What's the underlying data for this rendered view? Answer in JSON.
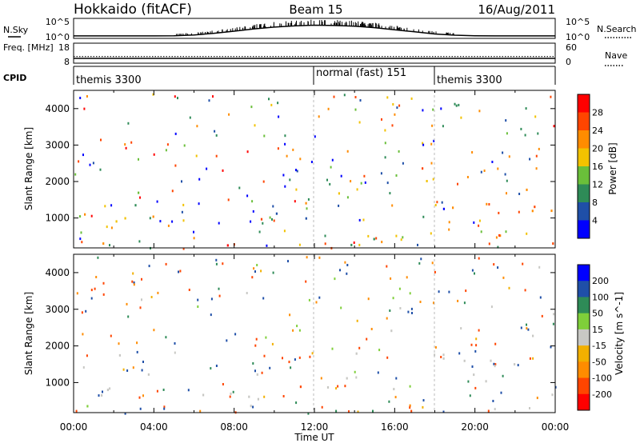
{
  "header": {
    "station": "Hokkaido (fitACF)",
    "beam": "Beam 15",
    "date": "16/Aug/2011"
  },
  "chart_data": [
    {
      "type": "line",
      "name": "noise-strip",
      "left_label": "N.Sky",
      "right_label": "N.Search",
      "left_ticks": [
        "10^5",
        "10^0"
      ],
      "right_ticks": [
        "10^5",
        "10^0"
      ],
      "x": [
        0,
        1,
        2,
        3,
        4,
        5,
        6,
        7,
        8,
        9,
        10,
        11,
        12,
        13,
        14,
        15,
        16,
        17,
        18,
        19,
        20,
        21,
        22,
        23,
        24
      ],
      "values": [
        0.05,
        0.05,
        0.05,
        0.05,
        0.05,
        0.06,
        0.1,
        0.2,
        0.32,
        0.45,
        0.55,
        0.62,
        0.66,
        0.64,
        0.6,
        0.52,
        0.4,
        0.28,
        0.16,
        0.09,
        0.06,
        0.05,
        0.05,
        0.05,
        0.05
      ]
    },
    {
      "type": "line",
      "name": "frequency-strip",
      "left_label": "Freq. [MHz]",
      "right_label": "Nave",
      "left_ticks": [
        "18",
        "8"
      ],
      "right_ticks": [
        "60",
        "0"
      ],
      "frequency_MHz": 10.4,
      "nave": 20
    },
    {
      "type": "table",
      "name": "cpid-strip",
      "label": "CPID",
      "segments": [
        {
          "start": 0,
          "end": 12,
          "text": "themis 3300"
        },
        {
          "start": 12,
          "end": 18,
          "text": "normal (fast) 151"
        },
        {
          "start": 18,
          "end": 24,
          "text": "themis 3300"
        }
      ]
    },
    {
      "type": "heatmap",
      "name": "power",
      "ylabel": "Slant Range [km]",
      "yticks": [
        1000,
        2000,
        3000,
        4000
      ],
      "ylim": [
        180,
        4500
      ],
      "colorbar_label": "Power [dB]",
      "colorbar_ticks": [
        4,
        8,
        12,
        16,
        20,
        24,
        28
      ],
      "colors": [
        "#0000ff",
        "#1f4fa8",
        "#2e8b57",
        "#6abf3a",
        "#f2c200",
        "#ff8c00",
        "#ff4500",
        "#ff0000"
      ],
      "features": [
        {
          "t0": 0.0,
          "t1": 9.5,
          "r0": 250,
          "r1": 1200,
          "level": 22
        },
        {
          "t0": 5.0,
          "t1": 9.0,
          "r0": 250,
          "r1": 650,
          "level": 30
        },
        {
          "t0": 0.0,
          "t1": 3.0,
          "r0": 950,
          "r1": 1650,
          "level": 17
        },
        {
          "t0": 3.0,
          "t1": 6.5,
          "r0": 1300,
          "r1": 1900,
          "level": 13
        },
        {
          "t0": 9.5,
          "t1": 12.0,
          "r0": 300,
          "r1": 1400,
          "level": 10
        },
        {
          "t0": 11.0,
          "t1": 18.0,
          "r0": 1400,
          "r1": 2200,
          "level": 20
        },
        {
          "t0": 12.5,
          "t1": 15.0,
          "r0": 1500,
          "r1": 2000,
          "level": 27
        },
        {
          "t0": 15.5,
          "t1": 17.5,
          "r0": 2000,
          "r1": 2500,
          "level": 26
        },
        {
          "t0": 12.0,
          "t1": 18.0,
          "r0": 250,
          "r1": 700,
          "level": 10
        },
        {
          "t0": 18.0,
          "t1": 24.0,
          "r0": 500,
          "r1": 2000,
          "level": 22
        },
        {
          "t0": 20.0,
          "t1": 24.0,
          "r0": 250,
          "r1": 900,
          "level": 27
        },
        {
          "t0": 18.0,
          "t1": 19.5,
          "r0": 1200,
          "r1": 2400,
          "level": 5
        },
        {
          "t0": 9.5,
          "t1": 11.0,
          "r0": 3000,
          "r1": 3300,
          "level": 8
        },
        {
          "t0": 19.0,
          "t1": 20.5,
          "r0": 3500,
          "r1": 3900,
          "level": 8
        }
      ]
    },
    {
      "type": "heatmap",
      "name": "velocity",
      "xlabel": "Time UT",
      "xticks": [
        "00:00",
        "04:00",
        "08:00",
        "12:00",
        "16:00",
        "20:00",
        "00:00"
      ],
      "ylabel": "Slant Range [km]",
      "yticks": [
        1000,
        2000,
        3000,
        4000
      ],
      "ylim": [
        180,
        4500
      ],
      "colorbar_label": "Velocity [m s^-1]",
      "colorbar_ticks": [
        200,
        100,
        50,
        15,
        -15,
        -50,
        -100,
        -200
      ],
      "colors": [
        "#0000ff",
        "#1f4fa8",
        "#2e8b57",
        "#7fcf3a",
        "#c8c8c4",
        "#f2b000",
        "#ff8c00",
        "#ff4500",
        "#ff0000"
      ],
      "features": [
        {
          "t0": 0.0,
          "t1": 9.5,
          "r0": 300,
          "r1": 1500,
          "level": 0
        },
        {
          "t0": 1.0,
          "t1": 6.0,
          "r0": 1200,
          "r1": 1800,
          "level": 0
        },
        {
          "t0": 10.0,
          "t1": 24.0,
          "r0": 1500,
          "r1": 2500,
          "level": 0
        },
        {
          "t0": 12.0,
          "t1": 18.0,
          "r0": 800,
          "r1": 1500,
          "level": 0
        },
        {
          "t0": 18.0,
          "t1": 24.0,
          "r0": 300,
          "r1": 1800,
          "level": 0
        },
        {
          "t0": 13.5,
          "t1": 15.5,
          "r0": 2100,
          "r1": 2400,
          "level": -55
        },
        {
          "t0": 12.5,
          "t1": 18.0,
          "r0": 250,
          "r1": 500,
          "level": -60
        },
        {
          "t0": 0.0,
          "t1": 3.0,
          "r0": 250,
          "r1": 550,
          "level": 40
        },
        {
          "t0": 19.5,
          "t1": 20.5,
          "r0": 3200,
          "r1": 3600,
          "level": 40
        },
        {
          "t0": 3.0,
          "t1": 12.0,
          "r0": 850,
          "r1": 950,
          "level": -150
        }
      ]
    }
  ]
}
